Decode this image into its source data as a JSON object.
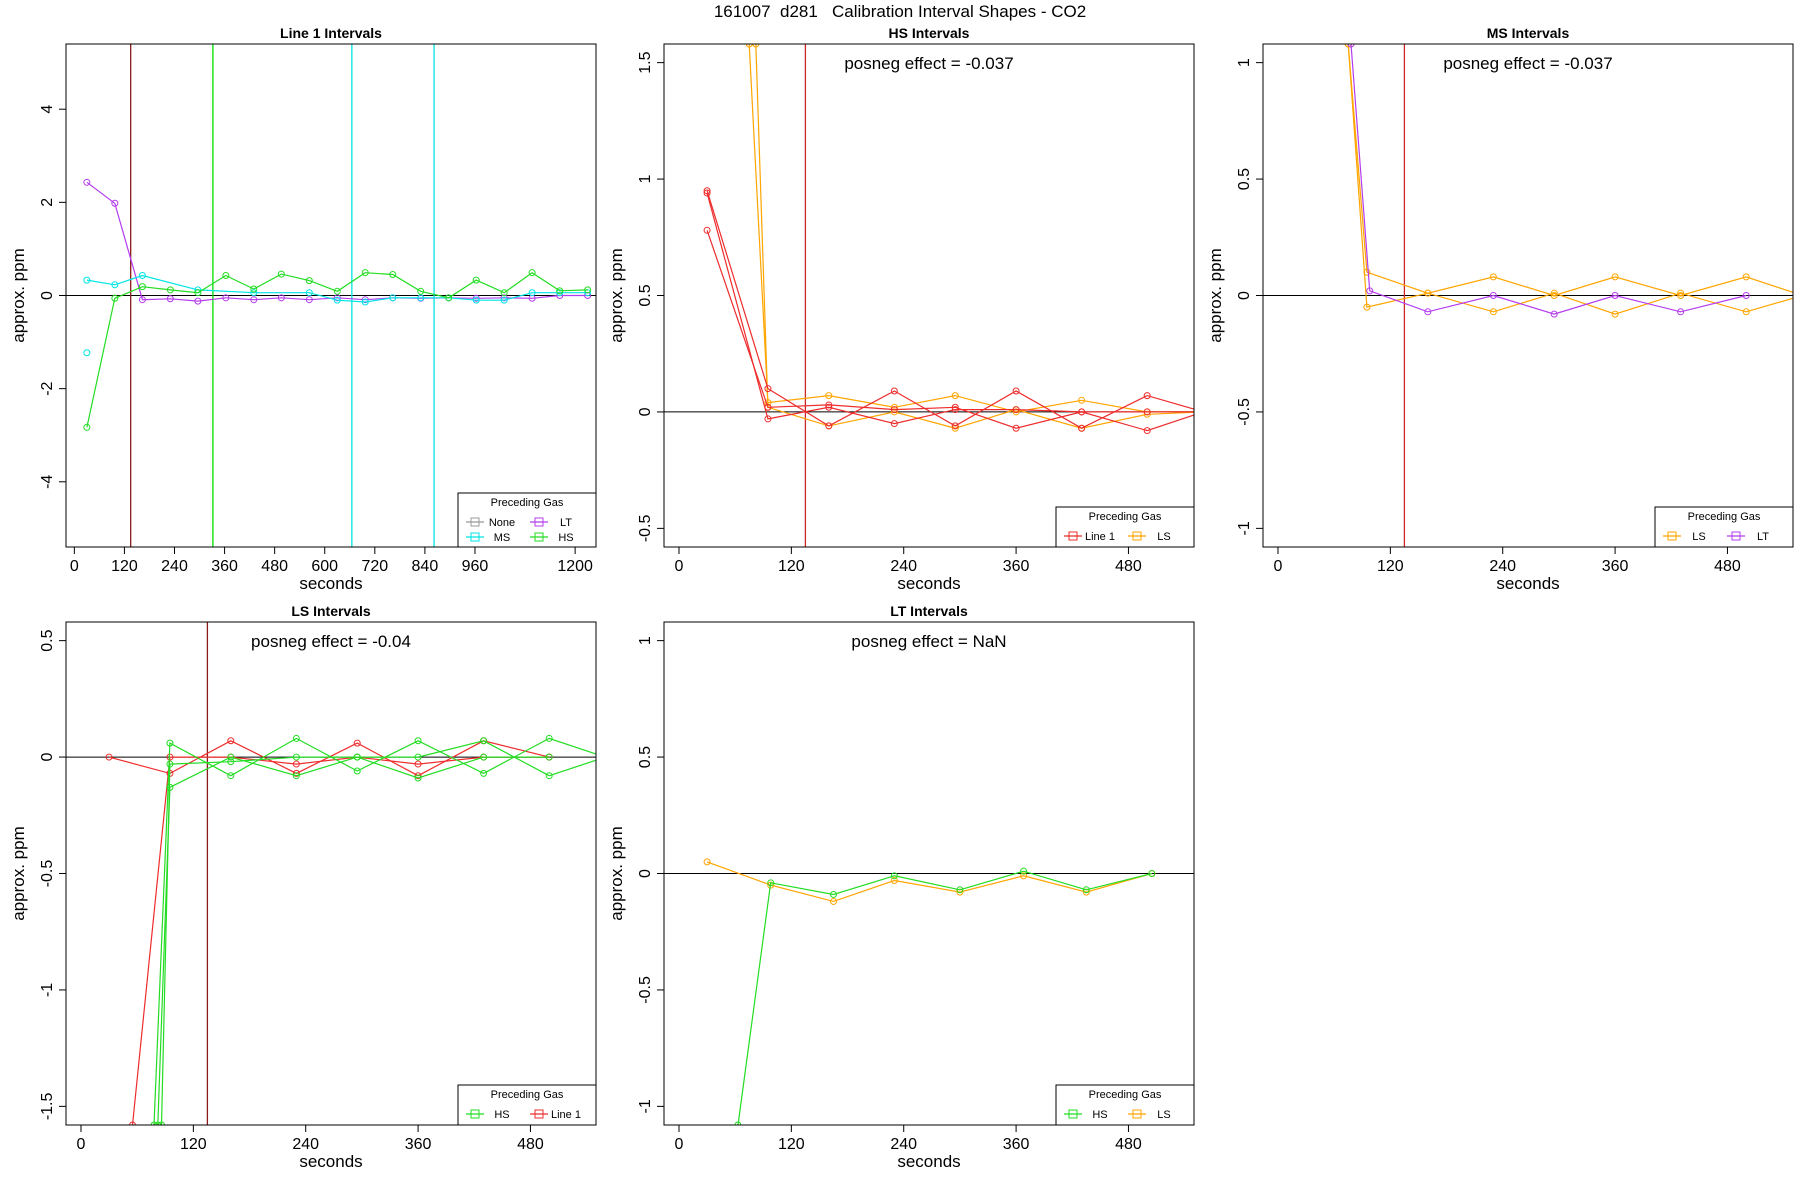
{
  "figure": {
    "title": "161007  d281   Calibration Interval Shapes - CO2"
  },
  "chart_data": [
    {
      "type": "line",
      "title": "Line 1 Intervals",
      "xlabel": "seconds",
      "ylabel": "approx. ppm",
      "xlim": [
        -20,
        1250
      ],
      "ylim": [
        -5.4,
        5.4
      ],
      "xticks": [
        0,
        120,
        240,
        360,
        480,
        600,
        720,
        840,
        960,
        1200
      ],
      "yticks": [
        -4,
        -2,
        0,
        2,
        4
      ],
      "annotation": "",
      "vlines": [
        {
          "x": 135,
          "color": "#8b1a1a"
        },
        {
          "x": 332,
          "color": "#00dd00"
        },
        {
          "x": 665,
          "color": "#00e5e5"
        },
        {
          "x": 862,
          "color": "#00e5e5"
        }
      ],
      "legend": {
        "title": "Preceding Gas",
        "position": "bottom-right",
        "columns": 2,
        "items": [
          {
            "label": "None",
            "color": "#999999"
          },
          {
            "label": "LT",
            "color": "#b43cee"
          },
          {
            "label": "MS",
            "color": "#00e5e5"
          },
          {
            "label": "HS",
            "color": "#22dd22"
          }
        ]
      },
      "series": [
        {
          "name": "LT",
          "color": "#b43cee",
          "x": [
            30,
            97,
            163,
            230,
            296,
            363,
            430,
            496,
            563,
            630,
            697,
            763,
            830,
            897,
            963,
            1030,
            1097,
            1163,
            1230
          ],
          "y": [
            2.43,
            1.98,
            -0.09,
            -0.07,
            -0.12,
            -0.05,
            -0.09,
            -0.05,
            -0.09,
            -0.05,
            -0.09,
            -0.05,
            -0.06,
            -0.05,
            -0.06,
            -0.05,
            -0.06,
            0.0,
            0.0
          ]
        },
        {
          "name": "MS",
          "color": "#00e5e5",
          "x": [
            30,
            97,
            163,
            296,
            430,
            563,
            630,
            697,
            763,
            830,
            897,
            963,
            1030,
            1097,
            1163,
            1230
          ],
          "y": [
            0.33,
            0.23,
            0.43,
            0.12,
            0.06,
            0.06,
            -0.1,
            -0.14,
            -0.05,
            -0.05,
            -0.05,
            -0.1,
            -0.1,
            0.06,
            0.06,
            0.06
          ]
        },
        {
          "name": "HS",
          "color": "#22dd22",
          "x": [
            30,
            97,
            163,
            230,
            296,
            363,
            430,
            496,
            563,
            630,
            697,
            763,
            830,
            897,
            963,
            1030,
            1097,
            1163,
            1230
          ],
          "y": [
            -2.83,
            -0.06,
            0.19,
            0.12,
            0.06,
            0.43,
            0.14,
            0.46,
            0.32,
            0.09,
            0.49,
            0.45,
            0.09,
            -0.05,
            0.33,
            0.06,
            0.49,
            0.1,
            0.12
          ]
        },
        {
          "name": "MS-2",
          "color": "#00e5e5",
          "x": [
            30
          ],
          "y": [
            -1.23
          ]
        }
      ]
    },
    {
      "type": "line",
      "title": "HS Intervals",
      "xlabel": "seconds",
      "ylabel": "approx. ppm",
      "xlim": [
        -16,
        550
      ],
      "ylim": [
        -0.58,
        1.58
      ],
      "xticks": [
        0,
        120,
        240,
        360,
        480
      ],
      "yticks": [
        -0.5,
        0.0,
        0.5,
        1.0,
        1.5
      ],
      "annotation": "posneg effect = -0.037",
      "vlines": [
        {
          "x": 135,
          "color": "#cd2626"
        }
      ],
      "legend": {
        "title": "Preceding Gas",
        "position": "bottom-right",
        "columns": 2,
        "items": [
          {
            "label": "Line 1",
            "color": "#ee2c2c"
          },
          {
            "label": "LS",
            "color": "#ffa500"
          }
        ]
      },
      "series": [
        {
          "name": "LS a",
          "color": "#ffa500",
          "x": [
            75,
            95,
            160,
            230,
            295,
            360,
            430,
            500,
            560
          ],
          "y": [
            1.58,
            0.04,
            0.07,
            0.02,
            0.07,
            0.0,
            0.05,
            0.0,
            0.0
          ]
        },
        {
          "name": "LS b",
          "color": "#ffa500",
          "x": [
            82,
            95,
            160,
            230,
            295,
            360,
            430,
            500,
            560
          ],
          "y": [
            1.58,
            0.02,
            -0.06,
            0.0,
            -0.07,
            0.01,
            -0.07,
            -0.01,
            0.0
          ]
        },
        {
          "name": "Line 1 a",
          "color": "#ee2c2c",
          "x": [
            30,
            95,
            160,
            230,
            295,
            360,
            430,
            500,
            560
          ],
          "y": [
            0.95,
            0.1,
            -0.06,
            0.09,
            -0.06,
            0.09,
            -0.07,
            0.07,
            0.0
          ]
        },
        {
          "name": "Line 1 b",
          "color": "#ee2c2c",
          "x": [
            30,
            95,
            160,
            230,
            295,
            360,
            430,
            500,
            560
          ],
          "y": [
            0.78,
            0.02,
            0.03,
            0.01,
            0.02,
            -0.07,
            0.0,
            0.0,
            0.0
          ]
        },
        {
          "name": "Line 1 c",
          "color": "#ee2c2c",
          "x": [
            30,
            95,
            160,
            230,
            295,
            360,
            430,
            500,
            560
          ],
          "y": [
            0.94,
            -0.03,
            0.02,
            -0.05,
            0.01,
            0.01,
            0.0,
            -0.08,
            0.0
          ]
        }
      ]
    },
    {
      "type": "line",
      "title": "MS Intervals",
      "xlabel": "seconds",
      "ylabel": "approx. ppm",
      "xlim": [
        -16,
        550
      ],
      "ylim": [
        -1.08,
        1.08
      ],
      "xticks": [
        0,
        120,
        240,
        360,
        480
      ],
      "yticks": [
        -1.0,
        -0.5,
        0.0,
        0.5,
        1.0
      ],
      "annotation": "posneg effect = -0.037",
      "vlines": [
        {
          "x": 135,
          "color": "#cd2626"
        }
      ],
      "legend": {
        "title": "Preceding Gas",
        "position": "bottom-right",
        "columns": 2,
        "items": [
          {
            "label": "LS",
            "color": "#ffa500"
          },
          {
            "label": "LT",
            "color": "#b43cee"
          }
        ]
      },
      "series": [
        {
          "name": "LS",
          "color": "#ffa500",
          "x": [
            75,
            95,
            160,
            230,
            295,
            360,
            430,
            500,
            560
          ],
          "y": [
            1.08,
            0.1,
            0.01,
            0.08,
            0.0,
            0.08,
            0.0,
            0.08,
            0.0
          ]
        },
        {
          "name": "LS b",
          "color": "#ffa500",
          "x": [
            75,
            95,
            160,
            230,
            295,
            360,
            430,
            500,
            560
          ],
          "y": [
            1.08,
            -0.05,
            0.01,
            -0.07,
            0.01,
            -0.08,
            0.01,
            -0.07,
            0.0
          ]
        },
        {
          "name": "LT",
          "color": "#b43cee",
          "x": [
            78,
            98,
            160,
            230,
            295,
            360,
            430,
            500
          ],
          "y": [
            1.08,
            0.02,
            -0.07,
            0.0,
            -0.08,
            0.0,
            -0.07,
            0.0
          ]
        }
      ]
    },
    {
      "type": "line",
      "title": "LS Intervals",
      "xlabel": "seconds",
      "ylabel": "approx. ppm",
      "xlim": [
        -16,
        550
      ],
      "ylim": [
        -1.58,
        0.58
      ],
      "xticks": [
        0,
        120,
        240,
        360,
        480
      ],
      "yticks": [
        -1.5,
        -1.0,
        -0.5,
        0.0,
        0.5
      ],
      "annotation": "posneg effect = -0.04",
      "vlines": [
        {
          "x": 135,
          "color": "#8b1a1a"
        }
      ],
      "legend": {
        "title": "Preceding Gas",
        "position": "bottom-right",
        "columns": 2,
        "items": [
          {
            "label": "HS",
            "color": "#22dd22"
          },
          {
            "label": "Line 1",
            "color": "#ee2c2c"
          }
        ]
      },
      "series": [
        {
          "name": "Line 1 a",
          "color": "#ee2c2c",
          "x": [
            30,
            95,
            160,
            230,
            295,
            360,
            430,
            500
          ],
          "y": [
            0.0,
            -0.07,
            0.07,
            -0.07,
            0.06,
            -0.08,
            0.07,
            0.0
          ]
        },
        {
          "name": "Line 1 b",
          "color": "#ee2c2c",
          "x": [
            55,
            95,
            160,
            230,
            295,
            360,
            430,
            500
          ],
          "y": [
            -1.58,
            0.0,
            0.0,
            -0.03,
            0.0,
            -0.03,
            0.0,
            0.0
          ]
        },
        {
          "name": "HS a",
          "color": "#22dd22",
          "x": [
            78,
            95,
            160,
            230,
            295,
            360,
            430,
            500,
            560
          ],
          "y": [
            -1.58,
            0.06,
            -0.08,
            0.08,
            -0.06,
            0.07,
            -0.07,
            0.08,
            0.0
          ]
        },
        {
          "name": "HS b",
          "color": "#22dd22",
          "x": [
            82,
            95,
            160,
            230,
            295,
            360,
            430,
            500,
            560
          ],
          "y": [
            -1.58,
            -0.13,
            0.0,
            -0.08,
            0.0,
            0.0,
            0.07,
            -0.08,
            0.0
          ]
        },
        {
          "name": "HS c",
          "color": "#22dd22",
          "x": [
            86,
            95,
            160,
            230,
            295,
            360,
            430,
            500
          ],
          "y": [
            -1.58,
            -0.03,
            -0.02,
            0.0,
            0.0,
            -0.09,
            0.0,
            0.0
          ]
        }
      ]
    },
    {
      "type": "line",
      "title": "LT Intervals",
      "xlabel": "seconds",
      "ylabel": "approx. ppm",
      "xlim": [
        -16,
        550
      ],
      "ylim": [
        -1.08,
        1.08
      ],
      "xticks": [
        0,
        120,
        240,
        360,
        480
      ],
      "yticks": [
        -1.0,
        -0.5,
        0.0,
        0.5,
        1.0
      ],
      "annotation": "posneg effect = NaN",
      "vlines": [],
      "legend": {
        "title": "Preceding Gas",
        "position": "bottom-right",
        "columns": 2,
        "items": [
          {
            "label": "HS",
            "color": "#22dd22"
          },
          {
            "label": "LS",
            "color": "#ffa500"
          }
        ]
      },
      "series": [
        {
          "name": "LS",
          "color": "#ffa500",
          "x": [
            30,
            98,
            165,
            230,
            300,
            368,
            435,
            505
          ],
          "y": [
            0.05,
            -0.05,
            -0.12,
            -0.03,
            -0.08,
            -0.01,
            -0.08,
            0.0
          ]
        },
        {
          "name": "HS",
          "color": "#22dd22",
          "x": [
            63,
            98,
            165,
            230,
            300,
            368,
            435,
            505
          ],
          "y": [
            -1.08,
            -0.04,
            -0.09,
            -0.01,
            -0.07,
            0.01,
            -0.07,
            0.0
          ]
        }
      ]
    }
  ]
}
